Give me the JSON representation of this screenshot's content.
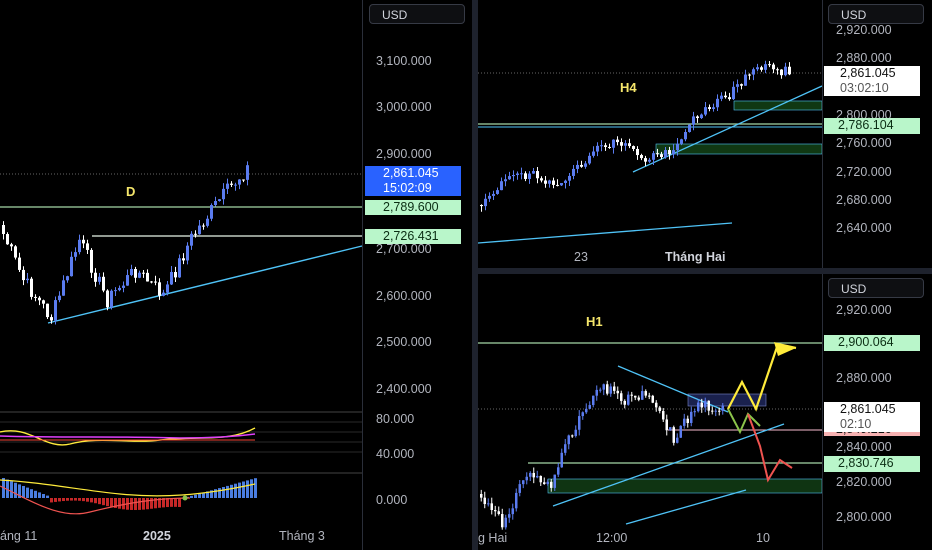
{
  "currency": "USD",
  "colors": {
    "background": "#000000",
    "candle_up": "#5b7cf0",
    "candle_down": "#ffffff",
    "trendline": "#4fc3f7",
    "level_green": "#a5d6a7",
    "zone_green": "#1b5e20",
    "arrow_yellow": "#ffeb3b",
    "arrow_green": "#8bc34a",
    "arrow_red": "#ef5350",
    "label_yellow": "#f5e66b"
  },
  "daily_panel": {
    "label": "D",
    "price_ticks": [
      "3,100.000",
      "3,000.000",
      "2,900.000",
      "2,800.000",
      "2,700.000",
      "2,600.000",
      "2,500.000",
      "2,400.000"
    ],
    "last_price": "2,861.045",
    "countdown": "15:02:09",
    "level_1": "2,789.600",
    "level_2": "2,726.431",
    "oscillator_ticks": [
      "80.000",
      "40.000"
    ],
    "histogram_tick": "0.000",
    "x_labels": [
      "áng 11",
      "2025",
      "Tháng 3"
    ]
  },
  "h4_panel": {
    "label": "H4",
    "price_ticks": [
      "2,920.000",
      "2,880.000",
      "2,800.000",
      "2,760.000",
      "2,720.000",
      "2,680.000",
      "2,640.000"
    ],
    "last_price": "2,861.045",
    "countdown": "03:02:10",
    "level_1": "2,786.104",
    "x_labels": [
      "23",
      "Tháng Hai"
    ]
  },
  "h1_panel": {
    "label": "H1",
    "price_ticks": [
      "2,920.000",
      "2,880.000",
      "2,840.000",
      "2,820.000",
      "2,800.000"
    ],
    "target_price": "2,900.064",
    "last_price": "2,861.045",
    "countdown": "02:10",
    "red_level": "2,849.216",
    "level_1": "2,830.746",
    "x_labels": [
      "g Hai",
      "12:00",
      "10"
    ]
  }
}
